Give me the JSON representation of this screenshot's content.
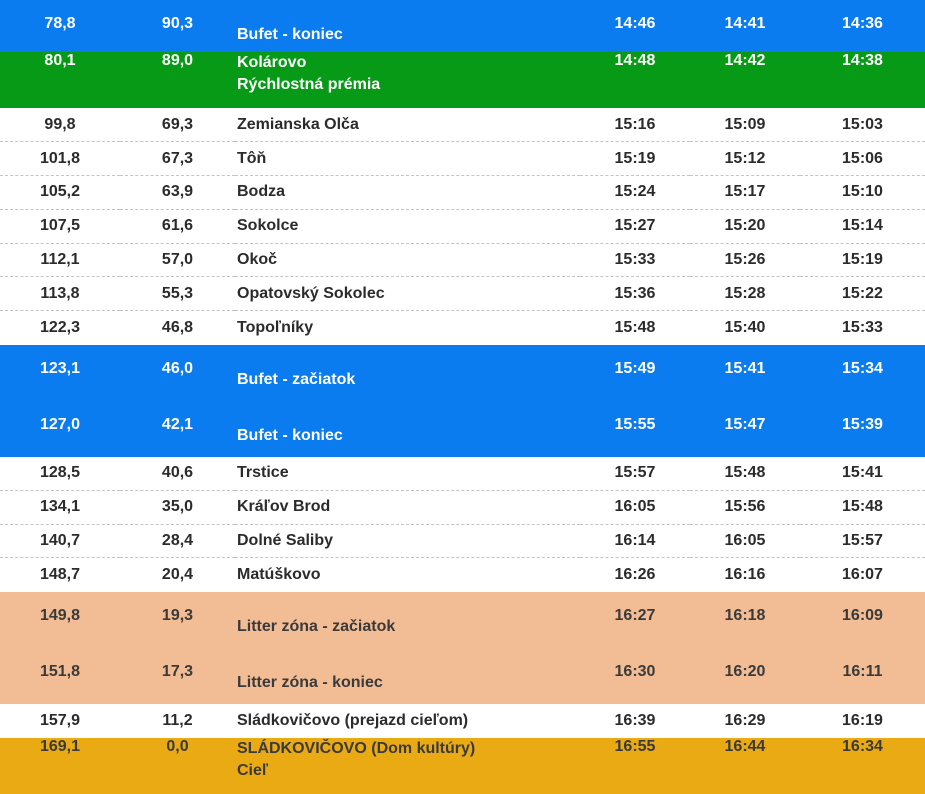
{
  "rows": [
    {
      "km": "78,8",
      "km_left": "90,3",
      "name": "Bufet - koniec",
      "name2": "",
      "t1": "14:46",
      "t2": "14:41",
      "t3": "14:36",
      "style": "blue"
    },
    {
      "km": "80,1",
      "km_left": "89,0",
      "name": "Kolárovo",
      "name2": "Rýchlostná prémia",
      "t1": "14:48",
      "t2": "14:42",
      "t3": "14:38",
      "style": "green"
    },
    {
      "km": "99,8",
      "km_left": "69,3",
      "name": "Zemianska Olča",
      "name2": "",
      "t1": "15:16",
      "t2": "15:09",
      "t3": "15:03",
      "style": "plain"
    },
    {
      "km": "101,8",
      "km_left": "67,3",
      "name": "Tôň",
      "name2": "",
      "t1": "15:19",
      "t2": "15:12",
      "t3": "15:06",
      "style": "plain"
    },
    {
      "km": "105,2",
      "km_left": "63,9",
      "name": "Bodza",
      "name2": "",
      "t1": "15:24",
      "t2": "15:17",
      "t3": "15:10",
      "style": "plain"
    },
    {
      "km": "107,5",
      "km_left": "61,6",
      "name": "Sokolce",
      "name2": "",
      "t1": "15:27",
      "t2": "15:20",
      "t3": "15:14",
      "style": "plain"
    },
    {
      "km": "112,1",
      "km_left": "57,0",
      "name": "Okoč",
      "name2": "",
      "t1": "15:33",
      "t2": "15:26",
      "t3": "15:19",
      "style": "plain"
    },
    {
      "km": "113,8",
      "km_left": "55,3",
      "name": "Opatovský Sokolec",
      "name2": "",
      "t1": "15:36",
      "t2": "15:28",
      "t3": "15:22",
      "style": "plain"
    },
    {
      "km": "122,3",
      "km_left": "46,8",
      "name": "Topoľníky",
      "name2": "",
      "t1": "15:48",
      "t2": "15:40",
      "t3": "15:33",
      "style": "plain"
    },
    {
      "km": "123,1",
      "km_left": "46,0",
      "name": "Bufet - začiatok",
      "name2": "",
      "t1": "15:49",
      "t2": "15:41",
      "t3": "15:34",
      "style": "blue"
    },
    {
      "km": "127,0",
      "km_left": "42,1",
      "name": "Bufet - koniec",
      "name2": "",
      "t1": "15:55",
      "t2": "15:47",
      "t3": "15:39",
      "style": "blue"
    },
    {
      "km": "128,5",
      "km_left": "40,6",
      "name": "Trstice",
      "name2": "",
      "t1": "15:57",
      "t2": "15:48",
      "t3": "15:41",
      "style": "plain"
    },
    {
      "km": "134,1",
      "km_left": "35,0",
      "name": "Kráľov Brod",
      "name2": "",
      "t1": "16:05",
      "t2": "15:56",
      "t3": "15:48",
      "style": "plain"
    },
    {
      "km": "140,7",
      "km_left": "28,4",
      "name": "Dolné Saliby",
      "name2": "",
      "t1": "16:14",
      "t2": "16:05",
      "t3": "15:57",
      "style": "plain"
    },
    {
      "km": "148,7",
      "km_left": "20,4",
      "name": "Matúškovo",
      "name2": "",
      "t1": "16:26",
      "t2": "16:16",
      "t3": "16:07",
      "style": "plain"
    },
    {
      "km": "149,8",
      "km_left": "19,3",
      "name": "Litter zóna - začiatok",
      "name2": "",
      "t1": "16:27",
      "t2": "16:18",
      "t3": "16:09",
      "style": "peach"
    },
    {
      "km": "151,8",
      "km_left": "17,3",
      "name": "Litter zóna - koniec",
      "name2": "",
      "t1": "16:30",
      "t2": "16:20",
      "t3": "16:11",
      "style": "peach"
    },
    {
      "km": "157,9",
      "km_left": "11,2",
      "name": "Sládkovičovo (prejazd cieľom)",
      "name2": "",
      "t1": "16:39",
      "t2": "16:29",
      "t3": "16:19",
      "style": "plain"
    },
    {
      "km": "169,1",
      "km_left": "0,0",
      "name": "SLÁDKOVIČOVO (Dom kultúry)",
      "name2": "Cieľ",
      "t1": "16:55",
      "t2": "16:44",
      "t3": "16:34",
      "style": "gold"
    }
  ],
  "colors": {
    "blue": "#0a7cf0",
    "green": "#079a16",
    "peach": "#f2bc94",
    "gold": "#eaaa14"
  }
}
